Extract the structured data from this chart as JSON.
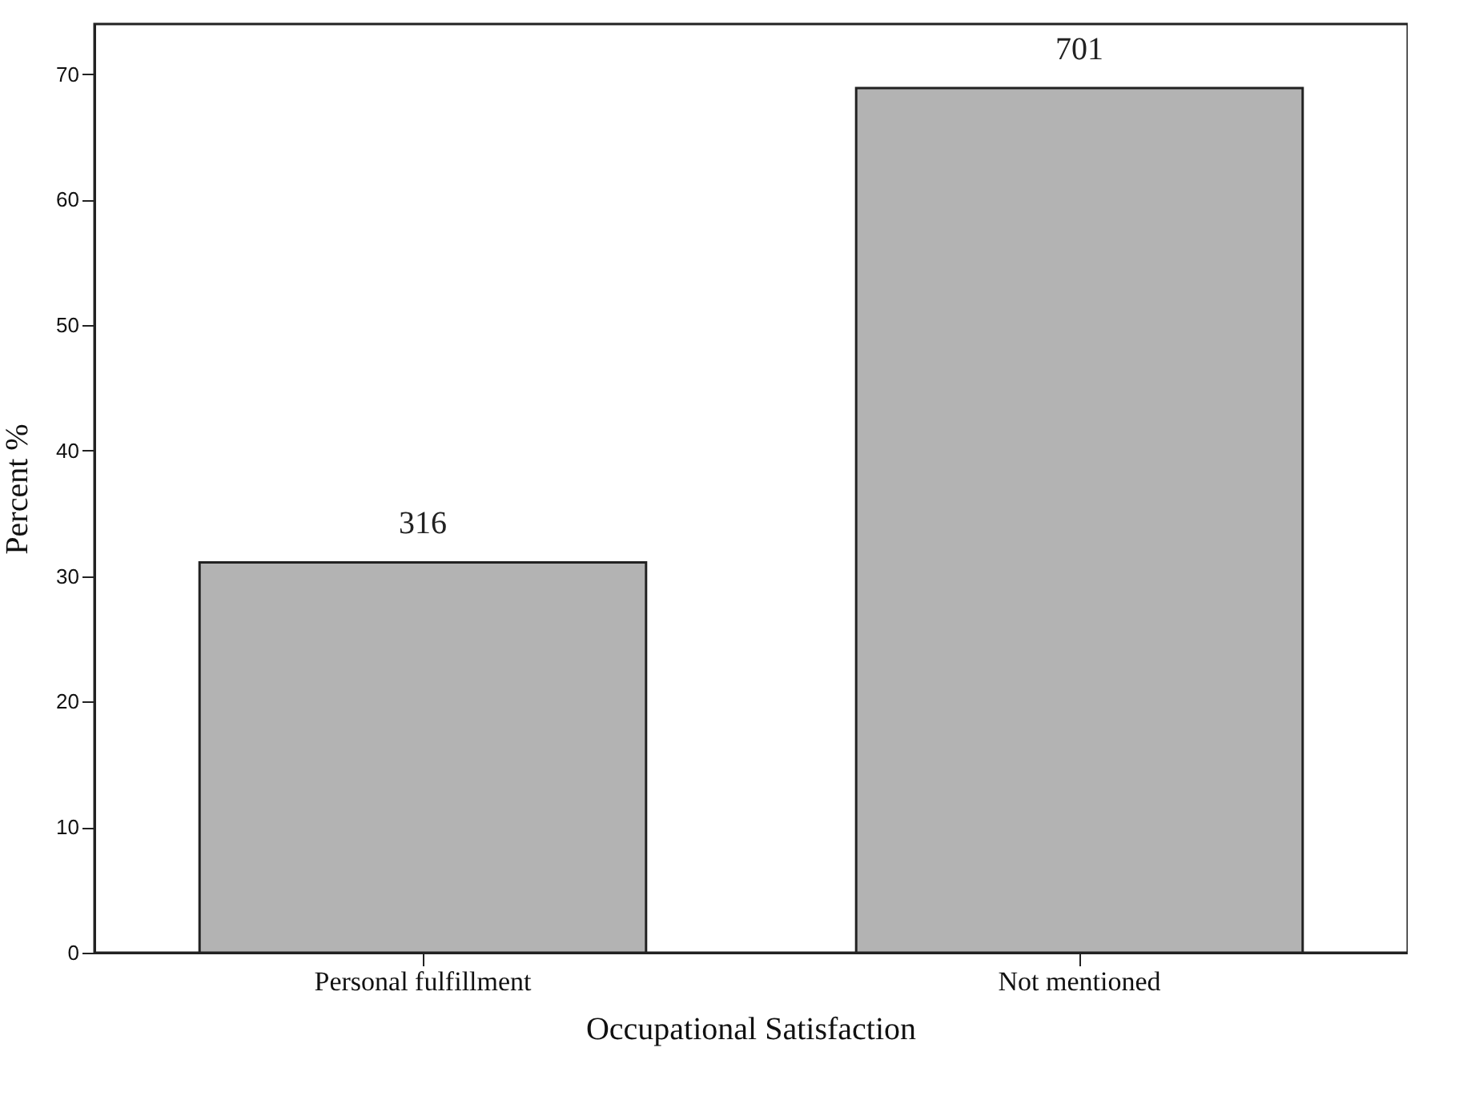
{
  "chart_data": {
    "type": "bar",
    "xlabel": "Occupational Satisfaction",
    "ylabel": "Percent %",
    "categories": [
      "Personal fulfillment",
      "Not mentioned"
    ],
    "values": [
      31.1,
      68.9
    ],
    "color": "#b3b3b3",
    "annotations": [
      {
        "text": "316",
        "x": "Personal fulfillment",
        "y": 31.1
      },
      {
        "text": "701",
        "x": "Not mentioned",
        "y": 68.9
      }
    ],
    "ylim": [
      0,
      74
    ],
    "yticks": [
      0,
      10,
      20,
      30,
      40,
      50,
      60,
      70
    ],
    "grid": false
  }
}
